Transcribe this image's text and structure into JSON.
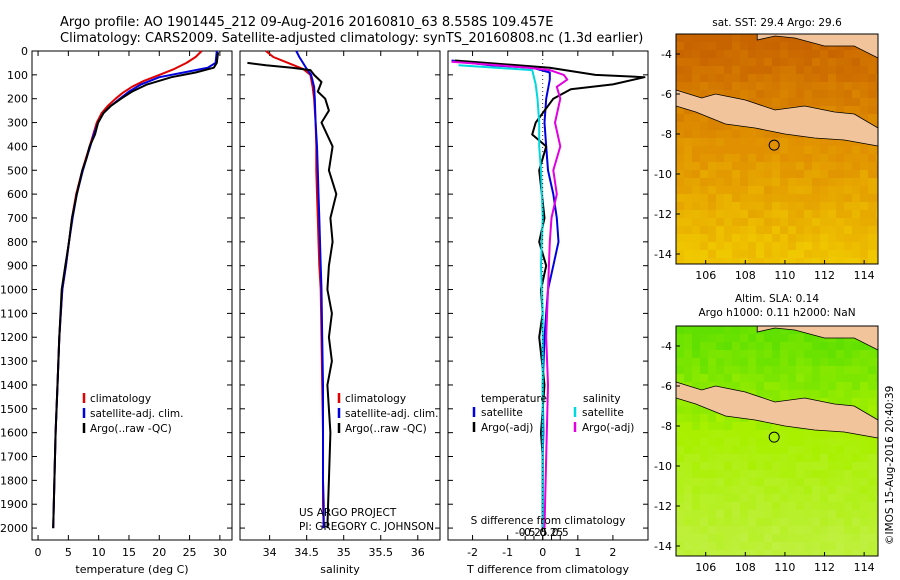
{
  "title_line1": "Argo profile: AO 1901445_212 09-Aug-2016 20160810_63 8.558S 109.457E",
  "title_line2": "Climatology: CARS2009. Satellite-adjusted climatology: synTS_20160808.nc (1.3d earlier)",
  "side_stamp": "©IMOS 15-Aug-2016 20:40:39",
  "chart_data": [
    {
      "id": "temperature",
      "type": "line",
      "xlabel": "temperature (deg C)",
      "ylabel": "",
      "xlim": [
        -1,
        32
      ],
      "ylim": [
        2050,
        0
      ],
      "xticks": [
        "0",
        "5",
        "10",
        "15",
        "20",
        "25",
        "30"
      ],
      "xtick_values": [
        0,
        5,
        10,
        15,
        20,
        25,
        30
      ],
      "yticks": [
        "0",
        "100",
        "200",
        "300",
        "400",
        "500",
        "600",
        "700",
        "800",
        "900",
        "1000",
        "1100",
        "1200",
        "1300",
        "1400",
        "1500",
        "1600",
        "1700",
        "1800",
        "1900",
        "2000"
      ],
      "ytick_values": [
        0,
        100,
        200,
        300,
        400,
        500,
        600,
        700,
        800,
        900,
        1000,
        1100,
        1200,
        1300,
        1400,
        1500,
        1600,
        1700,
        1800,
        1900,
        2000
      ],
      "legend": [
        "climatology",
        "satellite-adj. clim.",
        "Argo(..raw -QC)"
      ],
      "series": [
        {
          "name": "climatology",
          "color": "#e00000",
          "x": [
            27.0,
            26.0,
            24.5,
            22.5,
            20.0,
            17.5,
            15.5,
            14.0,
            12.8,
            11.5,
            10.5,
            9.7,
            9.1,
            8.5,
            7.9,
            7.3,
            6.3,
            5.6,
            5.1,
            4.6,
            4.0,
            3.5,
            3.2,
            2.9,
            2.7,
            2.5
          ],
          "y": [
            0,
            25,
            50,
            75,
            100,
            125,
            150,
            175,
            200,
            230,
            260,
            300,
            350,
            400,
            450,
            500,
            600,
            700,
            800,
            900,
            1000,
            1200,
            1400,
            1600,
            1800,
            2000
          ]
        },
        {
          "name": "satellite-adj. clim.",
          "color": "#0000e0",
          "x": [
            29.5,
            29.4,
            29.3,
            28.0,
            24.0,
            20.0,
            17.0,
            15.0,
            13.5,
            12.0,
            10.8,
            9.9,
            9.2,
            8.6,
            8.0,
            7.4,
            6.4,
            5.7,
            5.1,
            4.6,
            4.0,
            3.5,
            3.2,
            2.9,
            2.7,
            2.5
          ],
          "y": [
            0,
            25,
            50,
            70,
            90,
            110,
            140,
            170,
            200,
            230,
            260,
            300,
            350,
            400,
            450,
            500,
            600,
            700,
            800,
            900,
            1000,
            1200,
            1400,
            1600,
            1800,
            2000
          ]
        },
        {
          "name": "Argo(..raw -QC)",
          "color": "#000000",
          "x": [
            29.7,
            29.6,
            29.5,
            29.0,
            26.0,
            22.0,
            18.0,
            15.5,
            13.7,
            12.0,
            10.8,
            9.9,
            9.4,
            8.5,
            8.0,
            7.3,
            6.4,
            5.6,
            5.1,
            4.5,
            3.9,
            3.5,
            3.2,
            2.9,
            2.7,
            2.5
          ],
          "y": [
            5,
            25,
            50,
            70,
            90,
            110,
            140,
            170,
            200,
            230,
            260,
            300,
            350,
            400,
            450,
            500,
            600,
            700,
            800,
            900,
            1000,
            1200,
            1400,
            1600,
            1800,
            2000
          ]
        }
      ]
    },
    {
      "id": "salinity",
      "type": "line",
      "xlabel": "salinity",
      "xlim": [
        33.6,
        36.3
      ],
      "ylim": [
        2050,
        0
      ],
      "xticks": [
        "34",
        "34.5",
        "35",
        "35.5",
        "36"
      ],
      "xtick_values": [
        34,
        34.5,
        35,
        35.5,
        36
      ],
      "legend": [
        "climatology",
        "satellite-adj. clim.",
        "Argo(..raw -QC)"
      ],
      "annotation": [
        "US ARGO PROJECT",
        "PI: GREGORY C. JOHNSON"
      ],
      "series": [
        {
          "name": "climatology",
          "color": "#e00000",
          "x": [
            33.95,
            34.05,
            34.25,
            34.45,
            34.55,
            34.58,
            34.6,
            34.62,
            34.63,
            34.63,
            34.64,
            34.65,
            34.66,
            34.67,
            34.69,
            34.7,
            34.71,
            34.72,
            34.72,
            34.72,
            34.73
          ],
          "y": [
            0,
            25,
            50,
            75,
            100,
            150,
            200,
            300,
            400,
            500,
            600,
            700,
            800,
            900,
            1000,
            1200,
            1400,
            1600,
            1800,
            1900,
            2000
          ]
        },
        {
          "name": "satellite-adj. clim.",
          "color": "#0000e0",
          "x": [
            34.36,
            34.4,
            34.45,
            34.5,
            34.56,
            34.6,
            34.61,
            34.62,
            34.64,
            34.65,
            34.66,
            34.67,
            34.68,
            34.69,
            34.7,
            34.71,
            34.72,
            34.72,
            34.72,
            34.73,
            34.73
          ],
          "y": [
            0,
            25,
            50,
            75,
            100,
            150,
            200,
            300,
            400,
            500,
            600,
            700,
            800,
            900,
            1000,
            1200,
            1400,
            1600,
            1800,
            1900,
            2000
          ]
        },
        {
          "name": "Argo(..raw -QC)",
          "color": "#000000",
          "x": [
            33.7,
            33.95,
            34.3,
            34.55,
            34.6,
            34.7,
            34.65,
            34.75,
            34.8,
            34.7,
            34.85,
            34.8,
            34.9,
            34.82,
            34.85,
            34.8,
            34.78,
            34.84,
            34.8,
            34.84,
            34.78,
            34.82,
            34.8,
            34.79,
            34.78
          ],
          "y": [
            50,
            60,
            70,
            80,
            100,
            130,
            170,
            200,
            250,
            300,
            400,
            500,
            600,
            700,
            800,
            900,
            1000,
            1100,
            1200,
            1300,
            1400,
            1600,
            1800,
            1900,
            2000
          ]
        }
      ]
    },
    {
      "id": "difference",
      "type": "line",
      "xlabel": "T difference from climatology",
      "xlabel2": "S difference from climatology",
      "xlim": [
        -2.7,
        3.0
      ],
      "ylim": [
        2050,
        0
      ],
      "xticks": [
        "-2",
        "-1",
        "0",
        "1",
        "2"
      ],
      "xtick_values": [
        -2,
        -1,
        0,
        1,
        2
      ],
      "xticks2": [
        "-0.5",
        "-0.25",
        "0",
        "0.25",
        "0.5"
      ],
      "xtick2_values": [
        -0.5,
        -0.25,
        0,
        0.25,
        0.5
      ],
      "legend_temperature_title": "temperature",
      "legend_salinity_title": "salinity",
      "legend_temperature": [
        "satellite",
        "Argo(-adj)"
      ],
      "legend_salinity": [
        "satellite",
        "Argo(-adj)"
      ],
      "series": [
        {
          "name": "T satellite",
          "color": "#0000e0",
          "x": [
            -2.6,
            -1.5,
            -0.3,
            0.2,
            0.2,
            0.1,
            0.05,
            0.1,
            0.15,
            0.3,
            0.4,
            0.45,
            0.3,
            0.15,
            0.1,
            0.05,
            0.0,
            0.02,
            0.0,
            0.0,
            0.0,
            0.0
          ],
          "y": [
            40,
            60,
            70,
            90,
            120,
            200,
            300,
            400,
            500,
            600,
            700,
            800,
            900,
            1000,
            1100,
            1200,
            1400,
            1600,
            1700,
            1800,
            1900,
            2000
          ]
        },
        {
          "name": "T Argo(-adj)",
          "color": "#000000",
          "x": [
            -2.5,
            0.2,
            1.5,
            2.9,
            2.0,
            0.8,
            0.3,
            -0.2,
            -0.3,
            0.1,
            -0.1,
            0.05,
            -0.1,
            0.1,
            -0.05,
            0.0,
            -0.1,
            0.05,
            -0.05,
            0.0,
            0.0,
            0.0
          ],
          "y": [
            40,
            70,
            100,
            110,
            140,
            160,
            200,
            300,
            350,
            400,
            500,
            700,
            800,
            900,
            1000,
            1100,
            1200,
            1400,
            1600,
            1700,
            1900,
            2000
          ]
        },
        {
          "name": "S satellite",
          "color": "#00d8e0",
          "x": [
            -2.4,
            -0.3,
            -0.2,
            -0.15,
            -0.1,
            -0.1,
            -0.05,
            0.0,
            -0.05,
            0.0,
            0.0,
            0.0,
            0.0
          ],
          "y": [
            60,
            80,
            140,
            200,
            300,
            400,
            500,
            700,
            900,
            1100,
            1400,
            1700,
            2000
          ]
        },
        {
          "name": "S Argo(-adj)",
          "color": "#e000e0",
          "x": [
            -2.6,
            -0.4,
            0.2,
            0.6,
            0.7,
            0.4,
            0.5,
            0.35,
            0.5,
            0.3,
            0.4,
            0.25,
            0.2,
            0.15,
            0.1,
            0.15,
            0.1,
            0.05
          ],
          "y": [
            45,
            70,
            80,
            100,
            120,
            150,
            200,
            300,
            400,
            500,
            600,
            700,
            800,
            1000,
            1200,
            1400,
            1700,
            2000
          ]
        }
      ]
    },
    {
      "id": "sst_map",
      "type": "heatmap",
      "title": "sat. SST: 29.4 Argo: 29.6",
      "xlim": [
        104.5,
        114.7
      ],
      "ylim": [
        -14.5,
        -3
      ],
      "xticks": [
        "106",
        "108",
        "110",
        "112",
        "114"
      ],
      "xtick_values": [
        106,
        108,
        110,
        112,
        114
      ],
      "yticks": [
        "-4",
        "-6",
        "-8",
        "-10",
        "-12",
        "-14"
      ],
      "ytick_values": [
        -4,
        -6,
        -8,
        -10,
        -12,
        -14
      ],
      "marker": {
        "lon": 109.457,
        "lat": -8.558
      },
      "colors": {
        "north": "#c86400",
        "mid": "#e09000",
        "south": "#f0c800",
        "land": "#f2c49c"
      }
    },
    {
      "id": "sla_map",
      "type": "heatmap",
      "title": "Altim. SLA: 0.14",
      "subtitle": "Argo h1000: 0.11 h2000: NaN",
      "xlim": [
        104.5,
        114.7
      ],
      "ylim": [
        -14.5,
        -3
      ],
      "xticks": [
        "106",
        "108",
        "110",
        "112",
        "114"
      ],
      "xtick_values": [
        106,
        108,
        110,
        112,
        114
      ],
      "yticks": [
        "-4",
        "-6",
        "-8",
        "-10",
        "-12",
        "-14"
      ],
      "ytick_values": [
        -4,
        -6,
        -8,
        -10,
        -12,
        -14
      ],
      "marker": {
        "lon": 109.457,
        "lat": -8.558
      },
      "colors": {
        "north": "#60e000",
        "mid": "#a8f000",
        "south": "#c0f040",
        "land": "#f2c49c"
      }
    }
  ]
}
